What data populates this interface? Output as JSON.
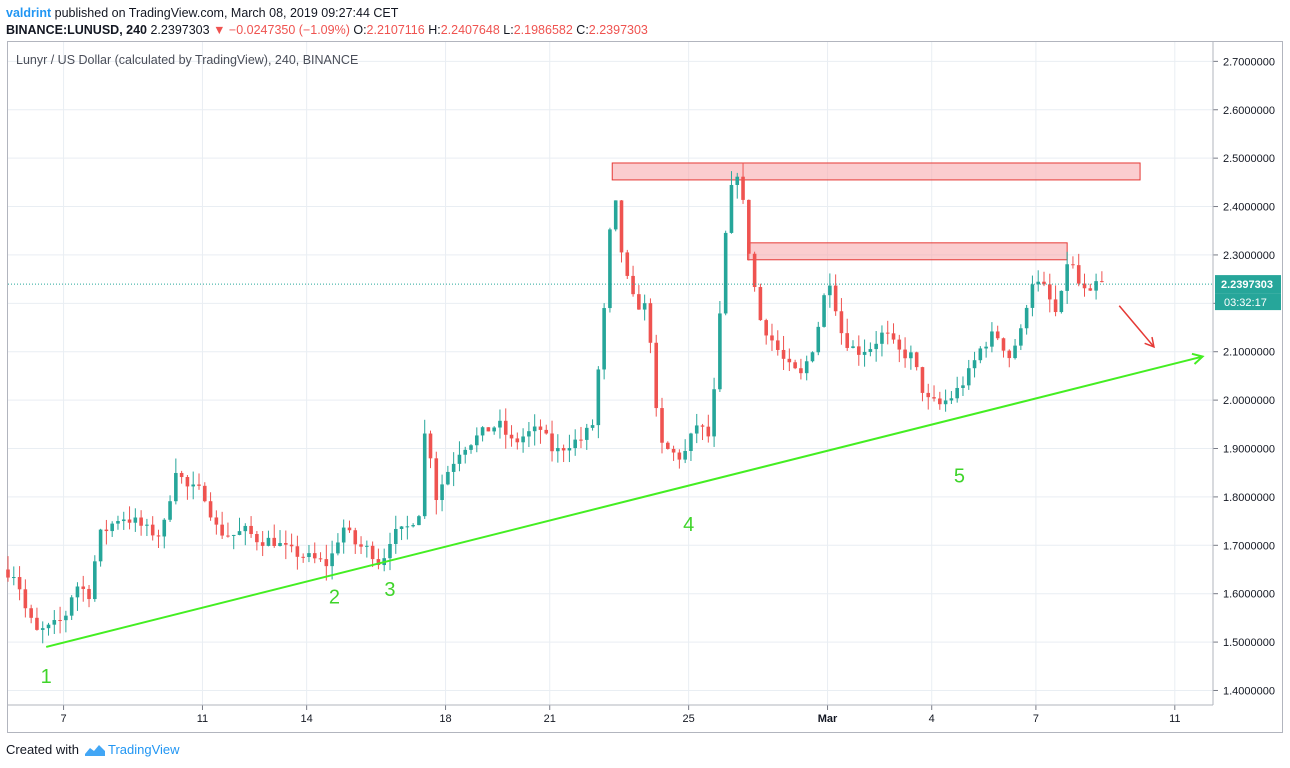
{
  "header": {
    "author": "valdrint",
    "published_text": "published on TradingView.com, March 08, 2019 09:27:44 CET"
  },
  "ohlc": {
    "symbol": "BINANCE:LUNUSD, 240",
    "last": "2.2397303",
    "change_arrow": "▼",
    "change": "−0.0247350 (−1.09%)",
    "o_label": "O:",
    "o": "2.2107116",
    "h_label": "H:",
    "h": "2.2407648",
    "l_label": "L:",
    "l": "2.1986582",
    "c_label": "C:",
    "c": "2.2397303"
  },
  "footer": {
    "created_with": "Created with",
    "brand": "TradingView",
    "logo_icon": "tradingview-logo-icon"
  },
  "colors": {
    "up": "#26a69a",
    "down": "#ef5350",
    "trendline": "#44ee22",
    "zone": "#f7a4a8",
    "arrow": "#e53935",
    "price_tag": "#26a69a",
    "grid": "#e9eef3"
  },
  "chart_data": {
    "type": "candlestick",
    "title": "Lunyr / US Dollar (calculated by TradingView), 240, BINANCE",
    "ylim": [
      1.37,
      2.74
    ],
    "y_ticks": [
      "2.7000000",
      "2.6000000",
      "2.5000000",
      "2.4000000",
      "2.3000000",
      "2.2000000",
      "2.1000000",
      "2.0000000",
      "1.9000000",
      "1.8000000",
      "1.7000000",
      "1.6000000",
      "1.5000000",
      "1.4000000"
    ],
    "x_ticks": [
      {
        "label": "7",
        "day": 7
      },
      {
        "label": "11",
        "day": 11
      },
      {
        "label": "14",
        "day": 14
      },
      {
        "label": "18",
        "day": 18
      },
      {
        "label": "21",
        "day": 21
      },
      {
        "label": "25",
        "day": 25
      },
      {
        "label": "Mar",
        "day": 29
      },
      {
        "label": "4",
        "day": 32
      },
      {
        "label": "7",
        "day": 35
      },
      {
        "label": "11",
        "day": 39
      }
    ],
    "x_start_day": 5.4,
    "x_end_day": 40.1,
    "last_price": {
      "value": 2.2397303,
      "label": "2.2397303",
      "countdown": "03:32:17"
    },
    "anchors": [
      [
        5.4,
        1.65
      ],
      [
        5.8,
        1.64
      ],
      [
        6.1,
        1.56
      ],
      [
        6.4,
        1.52
      ],
      [
        6.8,
        1.53
      ],
      [
        7.2,
        1.55
      ],
      [
        7.5,
        1.62
      ],
      [
        7.9,
        1.6
      ],
      [
        8.2,
        1.72
      ],
      [
        8.5,
        1.74
      ],
      [
        8.8,
        1.76
      ],
      [
        9.2,
        1.75
      ],
      [
        9.6,
        1.73
      ],
      [
        10.0,
        1.72
      ],
      [
        10.4,
        1.86
      ],
      [
        10.7,
        1.82
      ],
      [
        11.2,
        1.81
      ],
      [
        11.6,
        1.73
      ],
      [
        12.0,
        1.72
      ],
      [
        12.4,
        1.73
      ],
      [
        12.8,
        1.71
      ],
      [
        13.2,
        1.71
      ],
      [
        13.6,
        1.69
      ],
      [
        14.0,
        1.68
      ],
      [
        14.4,
        1.67
      ],
      [
        14.8,
        1.66
      ],
      [
        15.2,
        1.74
      ],
      [
        15.6,
        1.7
      ],
      [
        16.0,
        1.69
      ],
      [
        16.3,
        1.66
      ],
      [
        16.6,
        1.72
      ],
      [
        17.0,
        1.73
      ],
      [
        17.4,
        1.77
      ],
      [
        17.6,
        1.96
      ],
      [
        17.9,
        1.8
      ],
      [
        18.2,
        1.85
      ],
      [
        18.6,
        1.9
      ],
      [
        19.0,
        1.92
      ],
      [
        19.4,
        1.94
      ],
      [
        19.7,
        1.95
      ],
      [
        20.1,
        1.91
      ],
      [
        20.5,
        1.93
      ],
      [
        20.9,
        1.94
      ],
      [
        21.3,
        1.89
      ],
      [
        21.7,
        1.91
      ],
      [
        22.1,
        1.92
      ],
      [
        22.4,
        1.95
      ],
      [
        22.7,
        2.15
      ],
      [
        23.0,
        2.44
      ],
      [
        23.3,
        2.27
      ],
      [
        23.6,
        2.2
      ],
      [
        24.0,
        2.19
      ],
      [
        24.3,
        1.91
      ],
      [
        24.7,
        1.89
      ],
      [
        25.0,
        1.88
      ],
      [
        25.4,
        1.95
      ],
      [
        25.8,
        1.92
      ],
      [
        26.1,
        2.2
      ],
      [
        26.3,
        2.41
      ],
      [
        26.6,
        2.48
      ],
      [
        26.9,
        2.31
      ],
      [
        27.2,
        2.17
      ],
      [
        27.6,
        2.12
      ],
      [
        28.0,
        2.07
      ],
      [
        28.4,
        2.05
      ],
      [
        28.8,
        2.12
      ],
      [
        29.2,
        2.26
      ],
      [
        29.6,
        2.13
      ],
      [
        30.0,
        2.1
      ],
      [
        30.4,
        2.11
      ],
      [
        30.8,
        2.14
      ],
      [
        31.2,
        2.1
      ],
      [
        31.6,
        2.09
      ],
      [
        32.0,
        2.0
      ],
      [
        32.4,
        1.99
      ],
      [
        32.8,
        2.01
      ],
      [
        33.2,
        2.05
      ],
      [
        33.6,
        2.11
      ],
      [
        34.0,
        2.14
      ],
      [
        34.4,
        2.09
      ],
      [
        34.8,
        2.15
      ],
      [
        35.0,
        2.25
      ],
      [
        35.4,
        2.23
      ],
      [
        35.8,
        2.17
      ],
      [
        36.1,
        2.3
      ],
      [
        36.4,
        2.24
      ],
      [
        36.7,
        2.21
      ],
      [
        36.9,
        2.24
      ]
    ],
    "resistance_zones": [
      {
        "day_start": 22.8,
        "day_end": 38.0,
        "low": 2.455,
        "high": 2.49
      },
      {
        "day_start": 26.7,
        "day_end": 35.9,
        "low": 2.29,
        "high": 2.325
      }
    ],
    "trendline": {
      "start": [
        6.5,
        1.49
      ],
      "end": [
        39.8,
        2.09
      ]
    },
    "projection_arrow": {
      "start": [
        37.4,
        2.195
      ],
      "end": [
        38.4,
        2.11
      ]
    },
    "annotations": [
      {
        "label": "1",
        "day": 6.5,
        "value": 1.415
      },
      {
        "label": "2",
        "day": 14.8,
        "value": 1.58
      },
      {
        "label": "3",
        "day": 16.4,
        "value": 1.595
      },
      {
        "label": "4",
        "day": 25.0,
        "value": 1.73
      },
      {
        "label": "5",
        "day": 32.8,
        "value": 1.83
      }
    ]
  }
}
